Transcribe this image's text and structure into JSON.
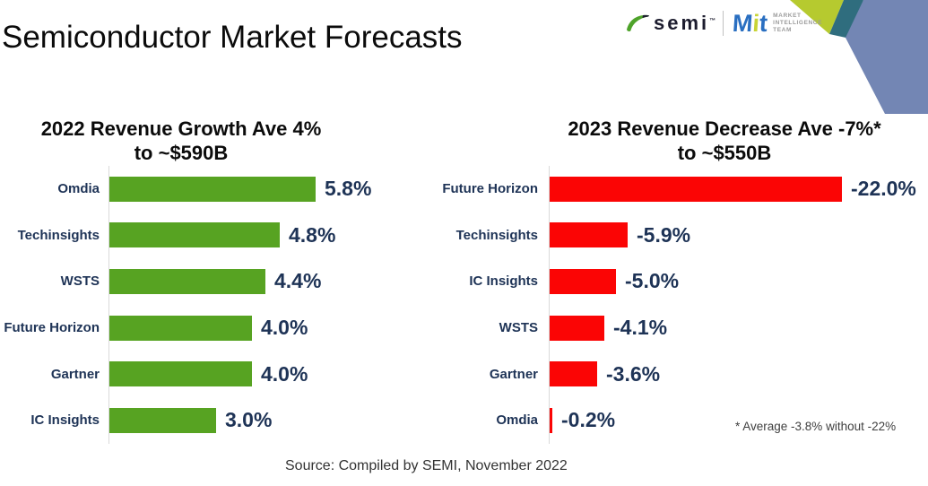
{
  "page": {
    "title": "Semiconductor Market Forecasts",
    "source": "Source: Compiled by SEMI, November 2022",
    "footnote": "* Average  -3.8% without -22%"
  },
  "logos": {
    "semi": {
      "text": "semi",
      "tm": "™"
    },
    "mit": {
      "m": "M",
      "i": "i",
      "t": "t",
      "team_line1": "MARKET",
      "team_line2": "INTELLIGENCE",
      "team_line3": "TEAM"
    }
  },
  "colors": {
    "growth_bar": "#57a322",
    "decrease_bar": "#fb0505",
    "label_navy": "#1e3356",
    "deco_lime": "#b6ca2f",
    "deco_teal": "#2f6d7e",
    "deco_blue": "#7386b4",
    "axis_line": "#d9d9d9"
  },
  "chart_data": [
    {
      "type": "bar",
      "orientation": "horizontal",
      "title_line1": "2022 Revenue Growth Ave 4%",
      "title_line2": "to ~$590B",
      "categories": [
        "Omdia",
        "Techinsights",
        "WSTS",
        "Future Horizon",
        "Gartner",
        "IC Insights"
      ],
      "values": [
        5.8,
        4.8,
        4.4,
        4.0,
        4.0,
        3.0
      ],
      "value_labels": [
        "5.8%",
        "4.8%",
        "4.4%",
        "4.0%",
        "4.0%",
        "3.0%"
      ],
      "bar_color": "#57a322",
      "xlim": [
        0,
        5.8
      ],
      "grid": false,
      "legend": false
    },
    {
      "type": "bar",
      "orientation": "horizontal",
      "title_line1": "2023 Revenue Decrease Ave -7%*",
      "title_line2": "to ~$550B",
      "categories": [
        "Future Horizon",
        "Techinsights",
        "IC Insights",
        "WSTS",
        "Gartner",
        "Omdia"
      ],
      "values": [
        -22.0,
        -5.9,
        -5.0,
        -4.1,
        -3.6,
        -0.2
      ],
      "value_labels": [
        "-22.0%",
        "-5.9%",
        "-5.0%",
        "-4.1%",
        "-3.6%",
        "-0.2%"
      ],
      "bar_color": "#fb0505",
      "xlim": [
        0,
        -22
      ],
      "grid": false,
      "legend": false
    }
  ]
}
